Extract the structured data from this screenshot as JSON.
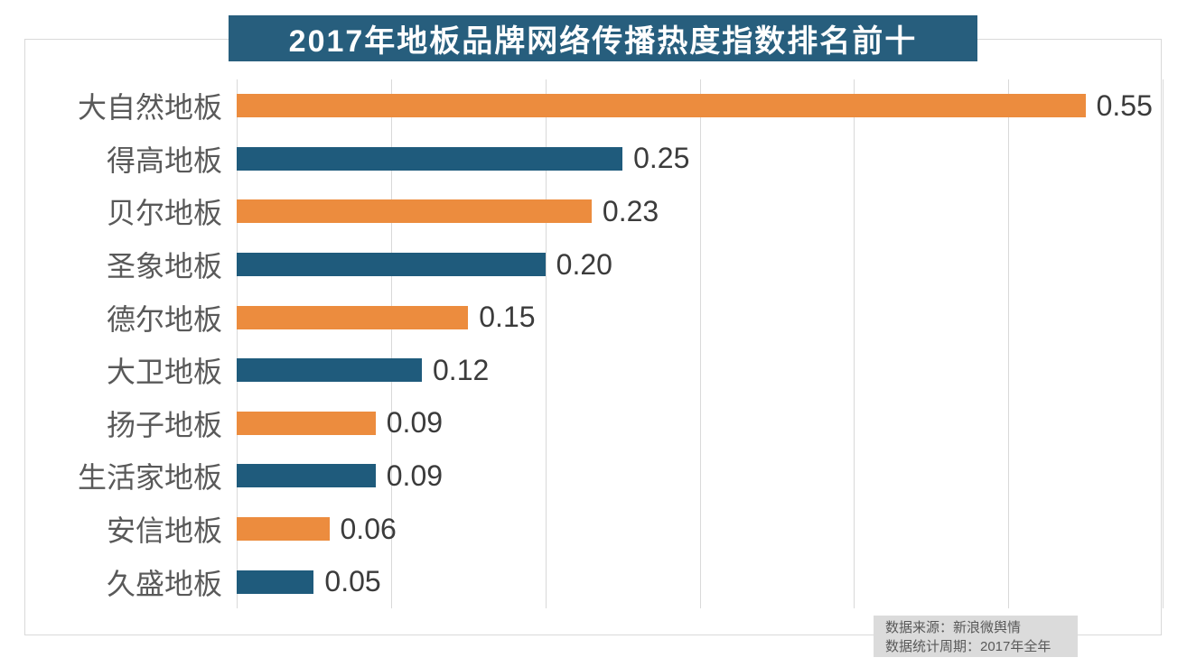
{
  "chart": {
    "title": "2017年地板品牌网络传播热度指数排名前十"
  },
  "chart_data": {
    "type": "bar",
    "orientation": "horizontal",
    "title": "2017年地板品牌网络传播热度指数排名前十",
    "categories": [
      "大自然地板",
      "得高地板",
      "贝尔地板",
      "圣象地板",
      "德尔地板",
      "大卫地板",
      "扬子地板",
      "生活家地板",
      "安信地板",
      "久盛地板"
    ],
    "values": [
      0.55,
      0.25,
      0.23,
      0.2,
      0.15,
      0.12,
      0.09,
      0.09,
      0.06,
      0.05
    ],
    "value_labels": [
      "0.55",
      "0.25",
      "0.23",
      "0.20",
      "0.15",
      "0.12",
      "0.09",
      "0.09",
      "0.06",
      "0.05"
    ],
    "xlabel": "",
    "ylabel": "",
    "xlim": [
      0,
      0.6
    ],
    "gridline_interval": 0.1,
    "grid": true,
    "legend": "none",
    "bar_palette": [
      "#EC8C3E",
      "#1F5B7C"
    ],
    "bar_color_by_row": [
      "#EC8C3E",
      "#1F5B7C",
      "#EC8C3E",
      "#1F5B7C",
      "#EC8C3E",
      "#1F5B7C",
      "#EC8C3E",
      "#1F5B7C",
      "#EC8C3E",
      "#1F5B7C"
    ]
  },
  "footer": {
    "line1": "数据来源：新浪微舆情",
    "line2": "数据统计周期：2017年全年"
  },
  "colors": {
    "title_bg": "#275E7D",
    "title_text": "#FFFFFF",
    "bar_orange": "#EC8C3E",
    "bar_blue": "#1F5B7C",
    "grid_line": "#D9D9D9",
    "border": "#D9D9D9",
    "category_text": "#595959",
    "value_text": "#3B3B3B",
    "footer_bg": "#DBDBDB",
    "footer_text": "#595959"
  }
}
